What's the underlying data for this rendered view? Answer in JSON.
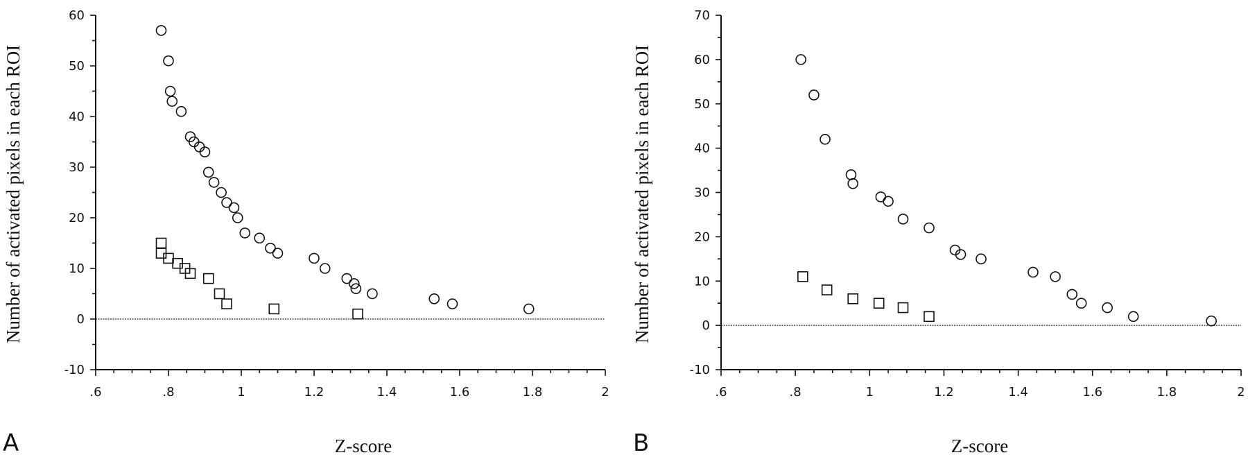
{
  "chart_data": [
    {
      "type": "scatter",
      "panel_label": "A",
      "xlabel": "Z-score",
      "ylabel": "Number of activated pixels in each ROI",
      "xlim": [
        0.6,
        2.0
      ],
      "ylim": [
        -10,
        60
      ],
      "x_ticks": [
        0.6,
        0.8,
        1.0,
        1.2,
        1.4,
        1.6,
        1.8,
        2.0
      ],
      "x_tick_labels": [
        ".6",
        ".8",
        "1",
        "1.2",
        "1.4",
        "1.6",
        "1.8",
        "2"
      ],
      "y_ticks": [
        -10,
        0,
        10,
        20,
        30,
        40,
        50,
        60
      ],
      "y_tick_labels": [
        "-10",
        "0",
        "10",
        "20",
        "30",
        "40",
        "50",
        "60"
      ],
      "zero_reference_line": true,
      "grid": false,
      "series": [
        {
          "marker": "circle",
          "points": [
            [
              0.78,
              57
            ],
            [
              0.8,
              51
            ],
            [
              0.805,
              45
            ],
            [
              0.81,
              43
            ],
            [
              0.835,
              41
            ],
            [
              0.86,
              36
            ],
            [
              0.87,
              35
            ],
            [
              0.885,
              34
            ],
            [
              0.9,
              33
            ],
            [
              0.91,
              29
            ],
            [
              0.925,
              27
            ],
            [
              0.945,
              25
            ],
            [
              0.96,
              23
            ],
            [
              0.98,
              22
            ],
            [
              0.99,
              20
            ],
            [
              1.01,
              17
            ],
            [
              1.05,
              16
            ],
            [
              1.08,
              14
            ],
            [
              1.1,
              13
            ],
            [
              1.2,
              12
            ],
            [
              1.23,
              10
            ],
            [
              1.29,
              8
            ],
            [
              1.31,
              7
            ],
            [
              1.315,
              6
            ],
            [
              1.36,
              5
            ],
            [
              1.53,
              4
            ],
            [
              1.58,
              3
            ],
            [
              1.79,
              2
            ]
          ]
        },
        {
          "marker": "square",
          "points": [
            [
              0.78,
              15
            ],
            [
              0.78,
              13
            ],
            [
              0.8,
              12
            ],
            [
              0.825,
              11
            ],
            [
              0.845,
              10
            ],
            [
              0.86,
              9
            ],
            [
              0.91,
              8
            ],
            [
              0.94,
              5
            ],
            [
              0.96,
              3
            ],
            [
              1.09,
              2
            ],
            [
              1.32,
              1
            ]
          ]
        }
      ]
    },
    {
      "type": "scatter",
      "panel_label": "B",
      "xlabel": "Z-score",
      "ylabel": "Number of activated pixels in each ROI",
      "xlim": [
        0.6,
        2.0
      ],
      "ylim": [
        -10,
        70
      ],
      "x_ticks": [
        0.6,
        0.8,
        1.0,
        1.2,
        1.4,
        1.6,
        1.8,
        2.0
      ],
      "x_tick_labels": [
        ".6",
        ".8",
        "1",
        "1.2",
        "1.4",
        "1.6",
        "1.8",
        "2"
      ],
      "y_ticks": [
        -10,
        0,
        10,
        20,
        30,
        40,
        50,
        60,
        70
      ],
      "y_tick_labels": [
        "-10",
        "0",
        "10",
        "20",
        "30",
        "40",
        "50",
        "60",
        "70"
      ],
      "zero_reference_line": true,
      "grid": false,
      "series": [
        {
          "marker": "circle",
          "points": [
            [
              0.815,
              60
            ],
            [
              0.85,
              52
            ],
            [
              0.88,
              42
            ],
            [
              0.95,
              34
            ],
            [
              0.955,
              32
            ],
            [
              1.03,
              29
            ],
            [
              1.05,
              28
            ],
            [
              1.09,
              24
            ],
            [
              1.16,
              22
            ],
            [
              1.23,
              17
            ],
            [
              1.245,
              16
            ],
            [
              1.3,
              15
            ],
            [
              1.44,
              12
            ],
            [
              1.5,
              11
            ],
            [
              1.545,
              7
            ],
            [
              1.57,
              5
            ],
            [
              1.64,
              4
            ],
            [
              1.71,
              2
            ],
            [
              1.92,
              1
            ]
          ]
        },
        {
          "marker": "square",
          "points": [
            [
              0.82,
              11
            ],
            [
              0.885,
              8
            ],
            [
              0.955,
              6
            ],
            [
              1.025,
              5
            ],
            [
              1.09,
              4
            ],
            [
              1.16,
              2
            ]
          ]
        }
      ]
    }
  ]
}
